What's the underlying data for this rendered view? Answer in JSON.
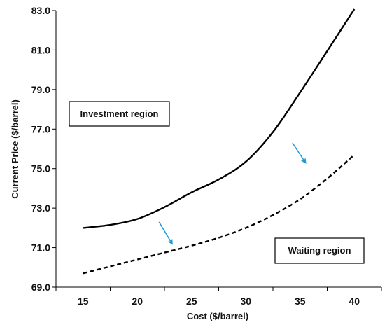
{
  "chart_data": {
    "type": "line",
    "xlabel": "Cost ($/barrel)",
    "ylabel": "Current Price ($/barrel)",
    "xlim": [
      12.5,
      42.5
    ],
    "ylim": [
      69.0,
      83.0
    ],
    "x_ticks": [
      "15",
      "20",
      "25",
      "30",
      "35",
      "40"
    ],
    "x_tick_values": [
      15,
      20,
      25,
      30,
      35,
      40
    ],
    "y_ticks": [
      "69.0",
      "71.0",
      "73.0",
      "75.0",
      "77.0",
      "79.0",
      "81.0",
      "83.0"
    ],
    "y_tick_values": [
      69,
      71,
      73,
      75,
      77,
      79,
      81,
      83
    ],
    "grid": false,
    "series": [
      {
        "key": "investment_threshold",
        "style": "solid",
        "color": "#000000",
        "x": [
          15,
          17.5,
          20,
          22.5,
          25,
          27.5,
          30,
          32.5,
          35,
          37.5,
          40
        ],
        "y": [
          72.0,
          72.15,
          72.45,
          73.05,
          73.8,
          74.45,
          75.35,
          76.85,
          78.85,
          80.95,
          83.1
        ]
      },
      {
        "key": "waiting_threshold",
        "style": "dashed",
        "color": "#000000",
        "x": [
          15,
          17.5,
          20,
          22.5,
          25,
          27.5,
          30,
          32.5,
          35,
          37.5,
          40
        ],
        "y": [
          69.7,
          70.05,
          70.4,
          70.75,
          71.1,
          71.5,
          72.0,
          72.65,
          73.45,
          74.5,
          75.7
        ]
      }
    ],
    "annotations": [
      {
        "key": "investment",
        "text": "Investment region"
      },
      {
        "key": "waiting",
        "text": "Waiting region"
      }
    ],
    "arrows": [
      {
        "key": "arrow-left",
        "color": "#1f9ad6",
        "from": [
          22.0,
          72.3
        ],
        "to": [
          23.2,
          71.2
        ]
      },
      {
        "key": "arrow-right",
        "color": "#1f9ad6",
        "from": [
          34.3,
          76.3
        ],
        "to": [
          35.5,
          75.3
        ]
      }
    ]
  }
}
